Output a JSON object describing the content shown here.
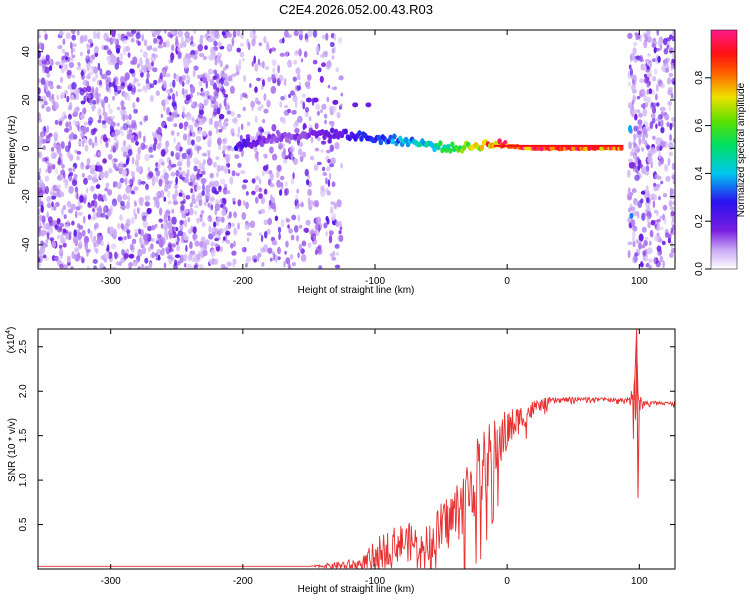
{
  "figure": {
    "title": "C2E4.2026.052.00.43.R03"
  },
  "chart_data": [
    {
      "type": "heatmap",
      "xlabel": "Height of straight line (km)",
      "ylabel": "Frequency (Hz)",
      "xlim": [
        -355,
        127
      ],
      "ylim": [
        -50,
        49
      ],
      "xticks": [
        -300,
        -200,
        -100,
        0,
        100
      ],
      "yticks": [
        -40,
        -20,
        0,
        20,
        40
      ],
      "colorbar": {
        "label": "Normalized spectral amplitude",
        "range": [
          0.0,
          1.0
        ],
        "ticks": [
          0.0,
          0.2,
          0.4,
          0.6,
          0.8
        ],
        "tick_labels": [
          "0.0",
          "0.2",
          "0.4",
          "0.6",
          "0.8"
        ],
        "colormap": "rainbow (purple-blue-cyan-green-yellow-red-pink)"
      },
      "regions": [
        {
          "x_range": [
            -355,
            -210
          ],
          "description": "dense noise",
          "amplitude": 0.1
        },
        {
          "x_range": [
            -210,
            -125
          ],
          "description": "sparse noise",
          "amplitude": 0.05
        },
        {
          "x_range": [
            92,
            127
          ],
          "description": "dense noise",
          "amplitude": 0.1
        }
      ],
      "signal_track": [
        {
          "x": -205,
          "freq": 1,
          "amp": 0.25
        },
        {
          "x": -180,
          "freq": 4,
          "amp": 0.15
        },
        {
          "x": -150,
          "freq": 6,
          "amp": 0.15
        },
        {
          "x": -125,
          "freq": 6,
          "amp": 0.2
        },
        {
          "x": -100,
          "freq": 4,
          "amp": 0.35
        },
        {
          "x": -75,
          "freq": 3,
          "amp": 0.4
        },
        {
          "x": -55,
          "freq": 1,
          "amp": 0.5
        },
        {
          "x": -40,
          "freq": 0,
          "amp": 0.55
        },
        {
          "x": -25,
          "freq": 1,
          "amp": 0.7
        },
        {
          "x": -10,
          "freq": 2,
          "amp": 0.9
        },
        {
          "x": 0,
          "freq": 1,
          "amp": 0.9
        },
        {
          "x": 20,
          "freq": 0,
          "amp": 0.95
        },
        {
          "x": 50,
          "freq": 0,
          "amp": 0.95
        },
        {
          "x": 88,
          "freq": 0,
          "amp": 0.9
        }
      ]
    },
    {
      "type": "line",
      "xlabel": "Height of straight line (km)",
      "ylabel": "SNR (10 * v/v)",
      "y_multiplier": "(x10",
      "y_multiplier_exp": "4",
      "y_multiplier_close": ")",
      "xlim": [
        -355,
        127
      ],
      "ylim": [
        0,
        2.7
      ],
      "xticks": [
        -300,
        -200,
        -100,
        0,
        100
      ],
      "yticks": [
        0.5,
        1.0,
        1.5,
        2.0,
        2.5
      ],
      "ytick_labels": [
        "0.5",
        "1.0",
        "1.5",
        "2.0",
        "2.5"
      ],
      "series": [
        {
          "color": "#e83030",
          "x": [
            -355,
            -300,
            -250,
            -200,
            -150,
            -110,
            -100,
            -90,
            -80,
            -70,
            -60,
            -50,
            -40,
            -30,
            -20,
            -10,
            0,
            10,
            20,
            30,
            40,
            60,
            80,
            90,
            95,
            98,
            100,
            105,
            110,
            127
          ],
          "y": [
            0.03,
            0.03,
            0.03,
            0.03,
            0.03,
            0.05,
            0.15,
            0.25,
            0.3,
            0.3,
            0.3,
            0.45,
            0.6,
            0.85,
            1.1,
            1.35,
            1.55,
            1.7,
            1.8,
            1.88,
            1.9,
            1.92,
            1.9,
            1.9,
            1.95,
            2.0,
            1.85,
            1.87,
            1.87,
            1.86
          ],
          "noise": [
            0,
            0,
            0,
            0,
            0,
            0.08,
            0.18,
            0.2,
            0.22,
            0.22,
            0.2,
            0.3,
            0.35,
            0.4,
            0.45,
            0.35,
            0.25,
            0.15,
            0.1,
            0.05,
            0.03,
            0.02,
            0.02,
            0.02,
            0.15,
            0.6,
            0.1,
            0.02,
            0.02,
            0.02
          ]
        }
      ]
    }
  ]
}
